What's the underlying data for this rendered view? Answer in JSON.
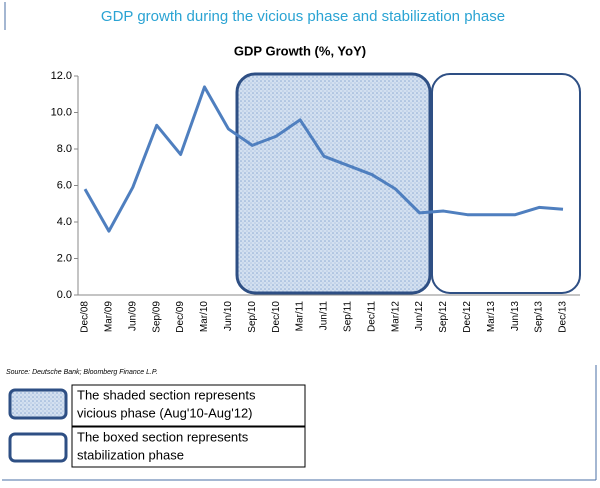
{
  "header": "GDP growth during the vicious phase and stabilization phase",
  "chart_data": {
    "type": "line",
    "title": "GDP Growth (%, YoY)",
    "categories": [
      "Dec/08",
      "Mar/09",
      "Jun/09",
      "Sep/09",
      "Dec/09",
      "Mar/10",
      "Jun/10",
      "Sep/10",
      "Dec/10",
      "Mar/11",
      "Jun/11",
      "Sep/11",
      "Dec/11",
      "Mar/12",
      "Jun/12",
      "Sep/12",
      "Dec/12",
      "Mar/13",
      "Jun/13",
      "Sep/13",
      "Dec/13"
    ],
    "values": [
      5.8,
      3.5,
      5.9,
      9.3,
      7.7,
      11.4,
      9.1,
      8.2,
      8.7,
      9.6,
      7.6,
      7.1,
      6.6,
      5.8,
      4.5,
      4.6,
      4.4,
      4.4,
      4.4,
      4.8,
      4.7
    ],
    "color": "#4f7fbf",
    "ylim": [
      0,
      12
    ],
    "yticks": [
      {
        "value": 0,
        "label": "0.0"
      },
      {
        "value": 2,
        "label": "2.0"
      },
      {
        "value": 4,
        "label": "4.0"
      },
      {
        "value": 6,
        "label": "6.0"
      },
      {
        "value": 8,
        "label": "8.0"
      },
      {
        "value": 10,
        "label": "10.0"
      },
      {
        "value": 12,
        "label": "12.0"
      }
    ],
    "grid": false
  },
  "source": "Source: Deutsche Bank; Bloomberg Finance L.P.",
  "notes": [
    [
      "The shaded section represents",
      "vicious phase (Aug'10-Aug'12)"
    ],
    [
      "The boxed section represents",
      "stabilization phase"
    ]
  ]
}
